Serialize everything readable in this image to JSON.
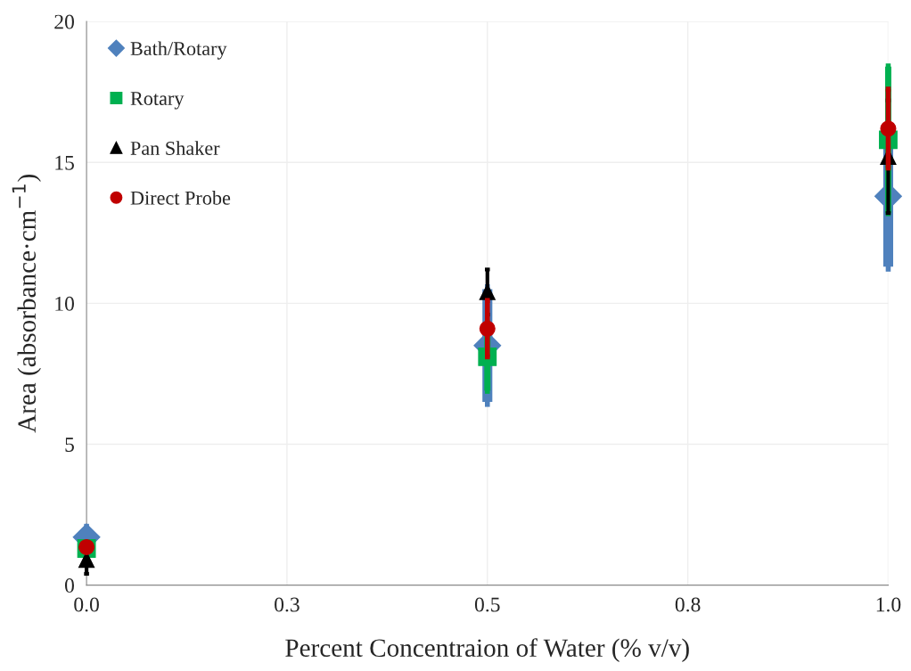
{
  "chart_data": {
    "type": "scatter",
    "xlabel": "Percent Concentraion of Water (% v/v)",
    "ylabel": "Area (absorbance·cm$^{−1}$)",
    "x": [
      0,
      0.5,
      1.0
    ],
    "series": [
      {
        "name": "Bath/Rotary",
        "color": "#4f81bd",
        "marker": "diamond",
        "values": [
          1.7,
          8.5,
          13.8
        ],
        "errors": [
          0.3,
          2.0,
          2.5
        ]
      },
      {
        "name": "Rotary",
        "color": "#00b050",
        "marker": "square",
        "values": [
          1.3,
          8.1,
          15.8
        ],
        "errors": [
          null,
          1.2,
          2.6
        ]
      },
      {
        "name": "Pan Shaker",
        "color": "#000000",
        "marker": "triangle",
        "values": [
          0.9,
          10.4,
          15.2
        ],
        "errors": [
          0.5,
          0.8,
          2.0
        ]
      },
      {
        "name": "Direct Probe",
        "color": "#c00000",
        "marker": "circle",
        "values": [
          1.35,
          9.1,
          16.2
        ],
        "errors": [
          null,
          1.0,
          1.4
        ]
      }
    ],
    "xlim": [
      0,
      1.0
    ],
    "ylim": [
      0,
      20
    ],
    "xticks": [
      {
        "value": 0,
        "label": "0.0"
      },
      {
        "value": 0.25,
        "label": "0.3"
      },
      {
        "value": 0.5,
        "label": "0.5"
      },
      {
        "value": 0.75,
        "label": "0.8"
      },
      {
        "value": 1.0,
        "label": "1.0"
      }
    ],
    "yticks": [
      0,
      5,
      10,
      15,
      20
    ],
    "grid": true,
    "legend": "top left"
  }
}
